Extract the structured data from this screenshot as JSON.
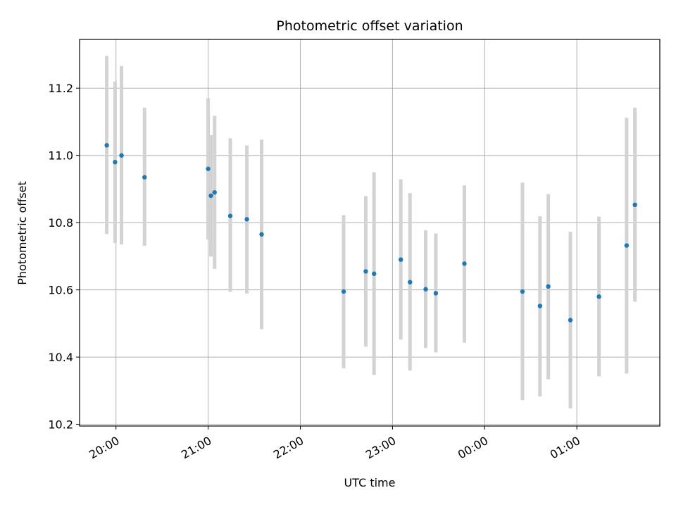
{
  "chart_data": {
    "type": "scatter",
    "title": "Photometric offset variation",
    "xlabel": "UTC time",
    "ylabel": "Photometric offset",
    "x_unit": "hours since 20:00 UTC",
    "xlim": [
      -0.395,
      5.9
    ],
    "ylim": [
      10.195,
      11.345
    ],
    "grid": true,
    "x_ticks": [
      {
        "value": 0,
        "label": "20:00"
      },
      {
        "value": 1,
        "label": "21:00"
      },
      {
        "value": 2,
        "label": "22:00"
      },
      {
        "value": 3,
        "label": "23:00"
      },
      {
        "value": 4,
        "label": "00:00"
      },
      {
        "value": 5,
        "label": "01:00"
      }
    ],
    "y_ticks": [
      {
        "value": 10.2,
        "label": "10.2"
      },
      {
        "value": 10.4,
        "label": "10.4"
      },
      {
        "value": 10.6,
        "label": "10.6"
      },
      {
        "value": 10.8,
        "label": "10.8"
      },
      {
        "value": 11.0,
        "label": "11.0"
      },
      {
        "value": 11.2,
        "label": "11.2"
      }
    ],
    "point_color": "#1f77b4",
    "errorbar_color": "#d3d3d3",
    "points": [
      {
        "x": -0.1,
        "y": 11.03,
        "err_low": 10.766,
        "err_high": 11.296
      },
      {
        "x": -0.01,
        "y": 10.98,
        "err_low": 10.74,
        "err_high": 11.22
      },
      {
        "x": 0.06,
        "y": 11.0,
        "err_low": 10.735,
        "err_high": 11.266
      },
      {
        "x": 0.31,
        "y": 10.935,
        "err_low": 10.731,
        "err_high": 11.142
      },
      {
        "x": 1.0,
        "y": 10.96,
        "err_low": 10.75,
        "err_high": 11.17
      },
      {
        "x": 1.03,
        "y": 10.88,
        "err_low": 10.699,
        "err_high": 11.06
      },
      {
        "x": 1.07,
        "y": 10.89,
        "err_low": 10.662,
        "err_high": 11.118
      },
      {
        "x": 1.24,
        "y": 10.82,
        "err_low": 10.594,
        "err_high": 11.051
      },
      {
        "x": 1.42,
        "y": 10.81,
        "err_low": 10.589,
        "err_high": 11.03
      },
      {
        "x": 1.58,
        "y": 10.765,
        "err_low": 10.483,
        "err_high": 11.047
      },
      {
        "x": 2.47,
        "y": 10.595,
        "err_low": 10.367,
        "err_high": 10.822
      },
      {
        "x": 2.71,
        "y": 10.655,
        "err_low": 10.431,
        "err_high": 10.879
      },
      {
        "x": 2.8,
        "y": 10.648,
        "err_low": 10.347,
        "err_high": 10.95
      },
      {
        "x": 3.09,
        "y": 10.69,
        "err_low": 10.452,
        "err_high": 10.929
      },
      {
        "x": 3.19,
        "y": 10.623,
        "err_low": 10.36,
        "err_high": 10.888
      },
      {
        "x": 3.36,
        "y": 10.602,
        "err_low": 10.427,
        "err_high": 10.777
      },
      {
        "x": 3.47,
        "y": 10.59,
        "err_low": 10.414,
        "err_high": 10.768
      },
      {
        "x": 3.78,
        "y": 10.678,
        "err_low": 10.443,
        "err_high": 10.911
      },
      {
        "x": 4.41,
        "y": 10.595,
        "err_low": 10.272,
        "err_high": 10.919
      },
      {
        "x": 4.6,
        "y": 10.552,
        "err_low": 10.283,
        "err_high": 10.819
      },
      {
        "x": 4.69,
        "y": 10.61,
        "err_low": 10.334,
        "err_high": 10.885
      },
      {
        "x": 4.93,
        "y": 10.51,
        "err_low": 10.247,
        "err_high": 10.773
      },
      {
        "x": 5.24,
        "y": 10.58,
        "err_low": 10.343,
        "err_high": 10.818
      },
      {
        "x": 5.54,
        "y": 10.732,
        "err_low": 10.351,
        "err_high": 11.112
      },
      {
        "x": 5.63,
        "y": 10.853,
        "err_low": 10.565,
        "err_high": 11.142
      }
    ]
  }
}
